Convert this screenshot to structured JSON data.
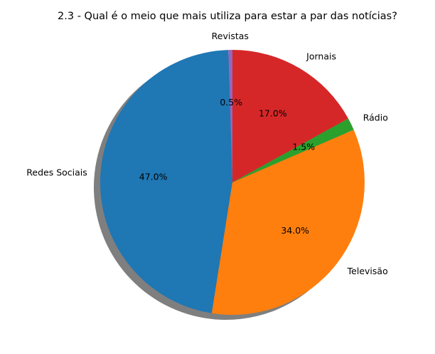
{
  "chart_data": {
    "type": "pie",
    "title": "2.3 - Qual é o meio que mais utiliza para estar a par das notícias?",
    "shadow": true,
    "start_angle_deg": 90,
    "direction": "counterclockwise",
    "slices": [
      {
        "label": "Revistas",
        "value": 0.5,
        "pct_label": "0.5%",
        "color": "#9467bd"
      },
      {
        "label": "Redes Sociais",
        "value": 47.0,
        "pct_label": "47.0%",
        "color": "#1f77b4"
      },
      {
        "label": "Televisão",
        "value": 34.0,
        "pct_label": "34.0%",
        "color": "#ff7f0e"
      },
      {
        "label": "Rádio",
        "value": 1.5,
        "pct_label": "1.5%",
        "color": "#2ca02c"
      },
      {
        "label": "Jornais",
        "value": 17.0,
        "pct_label": "17.0%",
        "color": "#d62728"
      }
    ]
  }
}
